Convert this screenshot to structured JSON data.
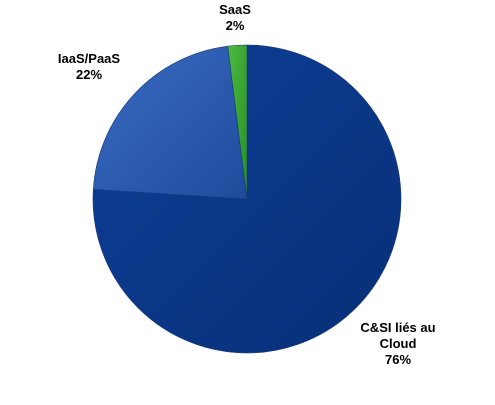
{
  "chart_data": {
    "type": "pie",
    "title": "",
    "start_angle_deg": 0,
    "direction": "clockwise",
    "slices": [
      {
        "label": "C&SI liés au Cloud",
        "label_lines": [
          "C&SI liés au",
          "Cloud"
        ],
        "value": 76,
        "value_label": "76%",
        "color": "#0b3a8c"
      },
      {
        "label": "IaaS/PaaS",
        "label_lines": [
          "IaaS/PaaS"
        ],
        "value": 22,
        "value_label": "22%",
        "color": "#2a5bb0"
      },
      {
        "label": "SaaS",
        "label_lines": [
          "SaaS"
        ],
        "value": 2,
        "value_label": "2%",
        "color": "#35a32f"
      }
    ]
  }
}
